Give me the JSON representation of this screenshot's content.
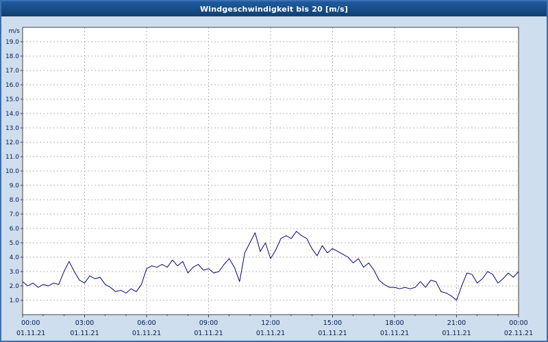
{
  "title": "Windgeschwindigkeit bis 20 [m/s]",
  "colors": {
    "titlebar_bg": "#17508c",
    "frame_bg": "#cfdeee",
    "plot_bg": "#ffffff",
    "axis": "#404040",
    "grid": "#b3b3b3",
    "line": "#000080",
    "label": "#001a4d"
  },
  "chart_data": {
    "type": "line",
    "title": "Windgeschwindigkeit bis 20 [m/s]",
    "ylabel": "m/s",
    "xlabel": "",
    "ylim": [
      0,
      20
    ],
    "x_range_minutes": [
      0,
      1440
    ],
    "sample_interval_minutes": 15,
    "grid": true,
    "legend": "none",
    "ytick_values": [
      1,
      2,
      3,
      4,
      5,
      6,
      7,
      8,
      9,
      10,
      11,
      12,
      13,
      14,
      15,
      16,
      17,
      18,
      19
    ],
    "ytick_labels": [
      "1.0",
      "2.0",
      "3.0",
      "4.0",
      "5.0",
      "6.0",
      "7.0",
      "8.0",
      "9.0",
      "10.0",
      "11.0",
      "12.0",
      "13.0",
      "14.0",
      "15.0",
      "16.0",
      "17.0",
      "18.0",
      "19.0"
    ],
    "xticks": [
      {
        "minutes": 0,
        "time": "00:00",
        "date": "01.11.21"
      },
      {
        "minutes": 180,
        "time": "03:00",
        "date": "01.11.21"
      },
      {
        "minutes": 360,
        "time": "06:00",
        "date": "01.11.21"
      },
      {
        "minutes": 540,
        "time": "09:00",
        "date": "01.11.21"
      },
      {
        "minutes": 720,
        "time": "12:00",
        "date": "01.11.21"
      },
      {
        "minutes": 900,
        "time": "15:00",
        "date": "01.11.21"
      },
      {
        "minutes": 1080,
        "time": "18:00",
        "date": "01.11.21"
      },
      {
        "minutes": 1260,
        "time": "21:00",
        "date": "01.11.21"
      },
      {
        "minutes": 1440,
        "time": "00:00",
        "date": "02.11.21"
      }
    ],
    "series": [
      {
        "name": "Windgeschwindigkeit [m/s]",
        "values": [
          2.3,
          2.0,
          2.2,
          1.9,
          2.1,
          2.0,
          2.2,
          2.1,
          3.0,
          3.7,
          3.0,
          2.4,
          2.2,
          2.7,
          2.5,
          2.6,
          2.1,
          1.9,
          1.6,
          1.7,
          1.5,
          1.8,
          1.6,
          2.1,
          3.2,
          3.4,
          3.3,
          3.5,
          3.3,
          3.8,
          3.4,
          3.7,
          2.9,
          3.3,
          3.5,
          3.1,
          3.2,
          2.9,
          3.0,
          3.5,
          3.9,
          3.3,
          2.3,
          4.3,
          5.0,
          5.7,
          4.4,
          5.0,
          3.9,
          4.5,
          5.3,
          5.5,
          5.3,
          5.8,
          5.5,
          5.3,
          4.6,
          4.1,
          4.8,
          4.3,
          4.6,
          4.4,
          4.2,
          4.0,
          3.6,
          3.9,
          3.3,
          3.6,
          3.1,
          2.4,
          2.1,
          1.9,
          1.9,
          1.8,
          1.9,
          1.8,
          1.9,
          2.3,
          1.9,
          2.4,
          2.3,
          1.6,
          1.5,
          1.3,
          1.0,
          2.0,
          2.9,
          2.8,
          2.2,
          2.5,
          3.0,
          2.8,
          2.2,
          2.5,
          2.9,
          2.6,
          3.0
        ]
      }
    ]
  }
}
